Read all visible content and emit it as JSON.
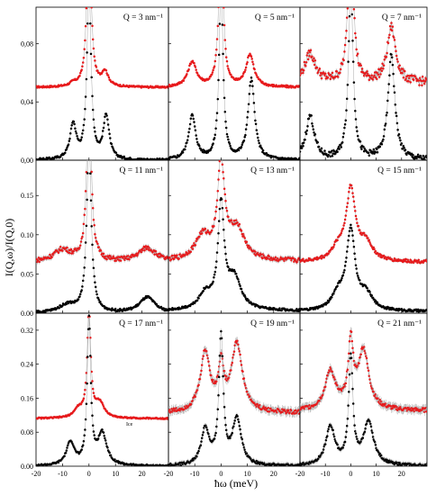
{
  "chart_data": {
    "type": "scatter",
    "layout": "3x3 grid of panels",
    "xlabel": "ħω (meV)",
    "ylabel": "I(Q,ω)/I(Q,0)",
    "x_ticks": [
      -20,
      -10,
      0,
      10,
      20
    ],
    "xlim": [
      -20,
      30
    ],
    "colors": {
      "upper": "#e8191b",
      "lower": "#000000",
      "errorbar": "#a8a8a8"
    },
    "rows": [
      {
        "ylim": [
          0,
          0.105
        ],
        "y_ticks": [
          0.0,
          0.04,
          0.08
        ],
        "y_tick_labels": [
          "0,00",
          "0,04",
          "0,08"
        ]
      },
      {
        "ylim": [
          0,
          0.195
        ],
        "y_ticks": [
          0.0,
          0.05,
          0.1,
          0.15
        ],
        "y_tick_labels": [
          "0.00",
          "0.05",
          "0.10",
          "0.15"
        ]
      },
      {
        "ylim": [
          0,
          0.36
        ],
        "y_ticks": [
          0.0,
          0.08,
          0.16,
          0.24,
          0.32
        ],
        "y_tick_labels": [
          "0.00",
          "0.08",
          "0.16",
          "0.24",
          "0.32"
        ]
      }
    ],
    "panels": [
      {
        "label": "Q = 3 nm⁻¹",
        "row": 0,
        "col": 0,
        "upper": {
          "base": 0.05,
          "central_peak": 0.12,
          "central_width": 0.9,
          "side_peaks": [
            {
              "x": -6,
              "y": 0.002,
              "w": 1.5
            },
            {
              "x": 6,
              "y": 0.01,
              "w": 1.5
            }
          ],
          "noise": 0.0006
        },
        "lower": {
          "base": 0.0,
          "central_peak": 0.12,
          "central_width": 0.9,
          "side_peaks": [
            {
              "x": -6,
              "y": 0.024,
              "w": 1.4
            },
            {
              "x": 6.5,
              "y": 0.03,
              "w": 1.3
            }
          ],
          "noise": 0.0008
        }
      },
      {
        "label": "Q = 5 nm⁻¹",
        "row": 0,
        "col": 1,
        "upper": {
          "base": 0.05,
          "central_peak": 0.12,
          "central_width": 0.9,
          "side_peaks": [
            {
              "x": -11,
              "y": 0.017,
              "w": 2.0
            },
            {
              "x": 11,
              "y": 0.022,
              "w": 1.8
            }
          ],
          "noise": 0.0008
        },
        "lower": {
          "base": 0.0,
          "central_peak": 0.12,
          "central_width": 0.9,
          "side_peaks": [
            {
              "x": -11,
              "y": 0.03,
              "w": 1.6
            },
            {
              "x": 11.5,
              "y": 0.055,
              "w": 1.5
            }
          ],
          "noise": 0.001
        }
      },
      {
        "label": "Q = 7 nm⁻¹",
        "row": 0,
        "col": 2,
        "upper": {
          "base": 0.053,
          "central_peak": 0.12,
          "central_width": 1.1,
          "side_peaks": [
            {
              "x": -16,
              "y": 0.02,
              "w": 2.5
            },
            {
              "x": 16,
              "y": 0.038,
              "w": 2.0
            }
          ],
          "noise": 0.003
        },
        "lower": {
          "base": 0.0,
          "central_peak": 0.12,
          "central_width": 1.1,
          "side_peaks": [
            {
              "x": -16,
              "y": 0.03,
              "w": 2.0
            },
            {
              "x": 16,
              "y": 0.072,
              "w": 1.6
            }
          ],
          "noise": 0.002
        }
      },
      {
        "label": "Q = 11 nm⁻¹",
        "row": 1,
        "col": 0,
        "upper": {
          "base": 0.065,
          "central_peak": 0.22,
          "central_width": 1.0,
          "side_peaks": [
            {
              "x": -10,
              "y": 0.015,
              "w": 4.0
            },
            {
              "x": 22,
              "y": 0.018,
              "w": 4.0
            }
          ],
          "noise": 0.003
        },
        "lower": {
          "base": 0.0,
          "central_peak": 0.22,
          "central_width": 1.0,
          "side_peaks": [
            {
              "x": -8,
              "y": 0.01,
              "w": 4.0
            },
            {
              "x": 22,
              "y": 0.02,
              "w": 3.5
            }
          ],
          "noise": 0.0015
        }
      },
      {
        "label": "Q = 13 nm⁻¹",
        "row": 1,
        "col": 1,
        "upper": {
          "base": 0.066,
          "central_peak": 0.12,
          "central_width": 1.6,
          "side_peaks": [
            {
              "x": -7,
              "y": 0.03,
              "w": 3.5
            },
            {
              "x": 6,
              "y": 0.04,
              "w": 3.5
            }
          ],
          "noise": 0.003
        },
        "lower": {
          "base": 0.003,
          "central_peak": 0.13,
          "central_width": 1.4,
          "side_peaks": [
            {
              "x": -6,
              "y": 0.02,
              "w": 3.0
            },
            {
              "x": 5,
              "y": 0.04,
              "w": 3.0
            }
          ],
          "noise": 0.0015
        }
      },
      {
        "label": "Q = 15 nm⁻¹",
        "row": 1,
        "col": 2,
        "upper": {
          "base": 0.065,
          "central_peak": 0.09,
          "central_width": 2.2,
          "side_peaks": [
            {
              "x": -5,
              "y": 0.015,
              "w": 3.0
            },
            {
              "x": 6,
              "y": 0.022,
              "w": 3.0
            }
          ],
          "noise": 0.002
        },
        "lower": {
          "base": 0.002,
          "central_peak": 0.1,
          "central_width": 2.0,
          "side_peaks": [
            {
              "x": -5,
              "y": 0.02,
              "w": 3.0
            },
            {
              "x": 6,
              "y": 0.02,
              "w": 3.0
            }
          ],
          "noise": 0.0015
        }
      },
      {
        "label": "Q = 17 nm⁻¹",
        "row": 2,
        "col": 0,
        "upper": {
          "base": 0.112,
          "central_peak": 0.25,
          "central_width": 0.8,
          "side_peaks": [
            {
              "x": -4,
              "y": 0.02,
              "w": 2.0
            },
            {
              "x": 4,
              "y": 0.035,
              "w": 2.0
            }
          ],
          "noise": 0.0015
        },
        "lower": {
          "base": 0.0,
          "central_peak": 0.34,
          "central_width": 0.8,
          "side_peaks": [
            {
              "x": -7,
              "y": 0.055,
              "w": 1.8
            },
            {
              "x": 5,
              "y": 0.075,
              "w": 2.0
            }
          ],
          "noise": 0.002
        },
        "annotation": "Ice"
      },
      {
        "label": "Q = 19 nm⁻¹",
        "row": 2,
        "col": 1,
        "upper": {
          "base": 0.125,
          "central_peak": 0.1,
          "central_width": 1.2,
          "side_peaks": [
            {
              "x": -6,
              "y": 0.14,
              "w": 2.2
            },
            {
              "x": 6,
              "y": 0.16,
              "w": 2.5
            }
          ],
          "noise": 0.005
        },
        "lower": {
          "base": 0.0,
          "central_peak": 0.3,
          "central_width": 1.0,
          "side_peaks": [
            {
              "x": -6,
              "y": 0.085,
              "w": 1.8
            },
            {
              "x": 6,
              "y": 0.11,
              "w": 2.0
            }
          ],
          "noise": 0.003
        }
      },
      {
        "label": "Q = 21 nm⁻¹",
        "row": 2,
        "col": 2,
        "upper": {
          "base": 0.13,
          "central_peak": 0.15,
          "central_width": 1.2,
          "side_peaks": [
            {
              "x": -8,
              "y": 0.09,
              "w": 2.5
            },
            {
              "x": 5,
              "y": 0.14,
              "w": 2.5
            }
          ],
          "noise": 0.005
        },
        "lower": {
          "base": 0.0,
          "central_peak": 0.25,
          "central_width": 1.0,
          "side_peaks": [
            {
              "x": -8,
              "y": 0.09,
              "w": 2.2
            },
            {
              "x": 7,
              "y": 0.1,
              "w": 2.5
            }
          ],
          "noise": 0.003
        }
      }
    ]
  }
}
